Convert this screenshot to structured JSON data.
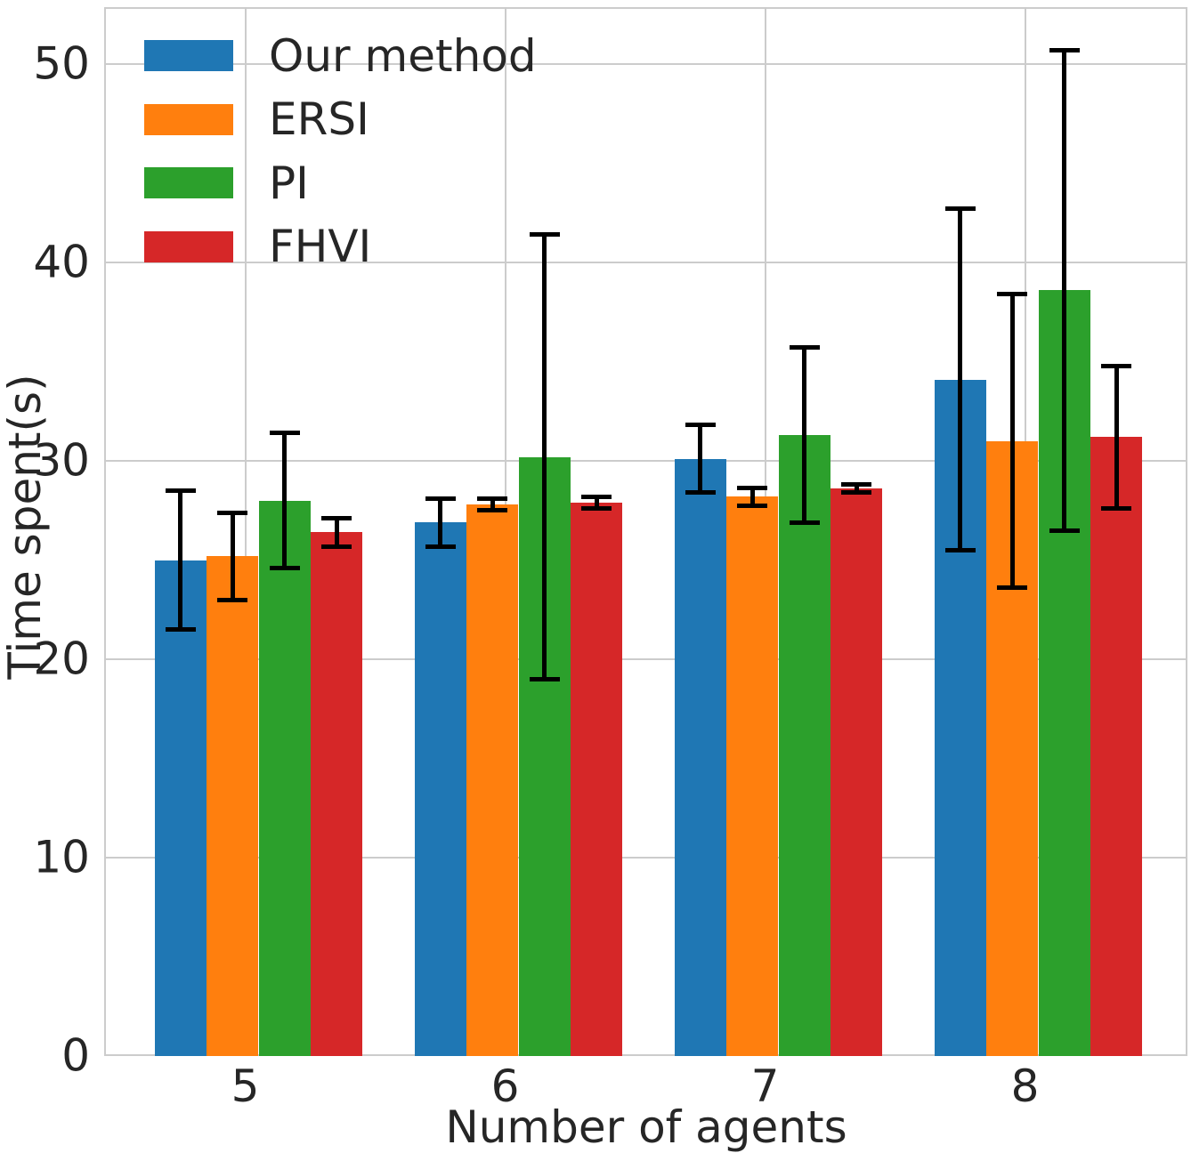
{
  "chart_data": {
    "type": "bar",
    "title": "",
    "xlabel": "Number of agents",
    "ylabel": "Time spent(s)",
    "categories": [
      "5",
      "6",
      "7",
      "8"
    ],
    "y_tick_labels": [
      "0",
      "10",
      "20",
      "30",
      "40",
      "50"
    ],
    "y_ticks": [
      0,
      10,
      20,
      30,
      40,
      50
    ],
    "ylim": [
      0,
      52.9
    ],
    "grid": true,
    "grid_color": "#cccccc",
    "error_bar_color": "#000000",
    "text_color": "#262626",
    "legend_position": "upper left",
    "series": [
      {
        "name": "Our method",
        "color": "#1f77b4",
        "values": [
          25.0,
          26.9,
          30.1,
          34.1
        ],
        "errors": [
          3.5,
          1.2,
          1.7,
          8.6
        ]
      },
      {
        "name": "ERSI",
        "color": "#ff7f0e",
        "values": [
          25.2,
          27.8,
          28.2,
          31.0
        ],
        "errors": [
          2.2,
          0.3,
          0.45,
          7.4
        ]
      },
      {
        "name": "PI",
        "color": "#2ca02c",
        "values": [
          28.0,
          30.2,
          31.3,
          38.6
        ],
        "errors": [
          3.4,
          11.2,
          4.4,
          12.1
        ]
      },
      {
        "name": "FHVI",
        "color": "#d62728",
        "values": [
          26.4,
          27.9,
          28.6,
          31.2
        ],
        "errors": [
          0.7,
          0.3,
          0.2,
          3.6
        ]
      }
    ]
  }
}
